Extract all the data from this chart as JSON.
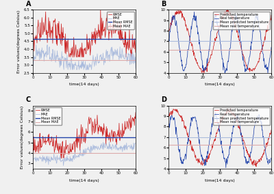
{
  "fig_width": 4.0,
  "fig_height": 2.84,
  "dpi": 100,
  "bg_color": "#f0f0f0",
  "panel_labels": [
    "A",
    "B",
    "C",
    "D"
  ],
  "subplot_A": {
    "xlabel": "time(14 days)",
    "ylabel": "Error values(degrees Celsius)",
    "xlim": [
      0,
      60
    ],
    "ylim": [
      2.5,
      6.5
    ],
    "mean_rmse": 4.65,
    "mean_mae": 3.3,
    "legend": [
      "RMSE",
      "MAE",
      "Mean RMSE",
      "Mean MAE"
    ]
  },
  "subplot_B": {
    "xlabel": "time(14 days)",
    "ylabel": "",
    "xlim": [
      0,
      60
    ],
    "ylim": [
      4,
      10
    ],
    "mean_pred": 7.0,
    "mean_real": 6.2,
    "legend": [
      "Predicted temperature",
      "Mean predicted temperature",
      "Real temperature",
      "Mean real temperature"
    ]
  },
  "subplot_C": {
    "xlabel": "time(14 days)",
    "ylabel": "Error values(degrees Celsius)",
    "xlim": [
      0,
      60
    ],
    "ylim": [
      2.5,
      8.5
    ],
    "mean_rmse": 5.5,
    "mean_mae": 4.0,
    "legend": [
      "RMSE",
      "MAE",
      "Mean RMSE",
      "Mean MAE"
    ]
  },
  "subplot_D": {
    "xlabel": "time(14 days)",
    "ylabel": "",
    "xlim": [
      0,
      60
    ],
    "ylim": [
      4,
      10
    ],
    "mean_pred": 7.0,
    "mean_real": 6.3,
    "legend": [
      "Predicted temperature",
      "Mean predicted temperature",
      "Real temperature",
      "Mean real temperature"
    ]
  },
  "colors": {
    "rmse": "#cc2222",
    "mae": "#aabbdd",
    "mean_rmse": "#2244aa",
    "mean_mae": "#ddaaaa",
    "predicted": "#cc2222",
    "mean_predicted": "#aabbdd",
    "real": "#2244aa",
    "mean_real": "#ddaaaa"
  },
  "font_sizes": {
    "panel_label": 7,
    "axis_label": 4.5,
    "tick_label": 4,
    "legend": 3.5
  }
}
